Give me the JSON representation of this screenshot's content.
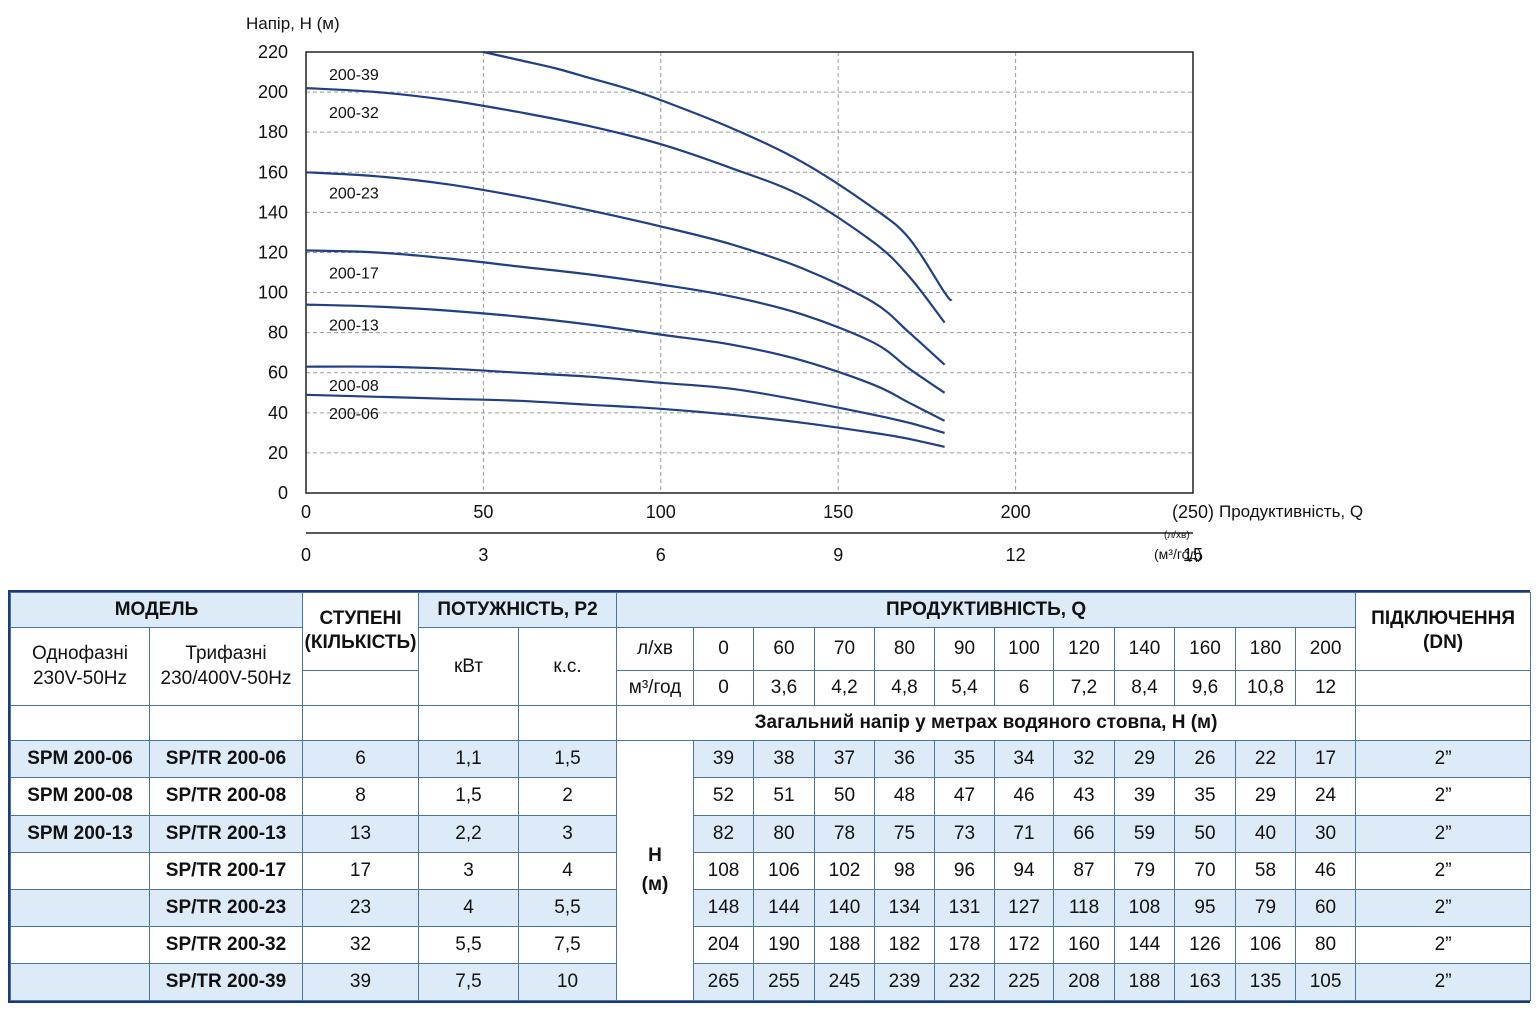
{
  "chart_data": {
    "type": "line",
    "ylabel": "Напір, Н (м)",
    "xlabel": "Продуктивність, Q",
    "x_unit_primary": "(л/хв)",
    "x_unit_secondary": "(м³/год)",
    "xlim": [
      0,
      250
    ],
    "ylim": [
      0,
      220
    ],
    "grid": true,
    "y_ticks": [
      "0",
      "20",
      "40",
      "60",
      "80",
      "100",
      "120",
      "140",
      "160",
      "180",
      "200",
      "220"
    ],
    "x_ticks_primary": [
      "0",
      "50",
      "100",
      "150",
      "200",
      "(250)"
    ],
    "x_ticks_secondary": [
      "0",
      "3",
      "6",
      "9",
      "12",
      "15"
    ],
    "series": [
      {
        "name": "200-39",
        "x": [
          50,
          60,
          70,
          80,
          90,
          100,
          120,
          140,
          160,
          170,
          180,
          182
        ],
        "y": [
          220,
          216,
          212,
          207,
          202,
          196,
          182,
          165,
          142,
          127,
          100,
          96
        ]
      },
      {
        "name": "200-32",
        "x": [
          0,
          20,
          40,
          60,
          80,
          100,
          120,
          140,
          160,
          170,
          180
        ],
        "y": [
          202,
          200,
          196,
          190,
          183,
          174,
          162,
          148,
          125,
          108,
          85
        ]
      },
      {
        "name": "200-23",
        "x": [
          0,
          20,
          40,
          60,
          80,
          100,
          120,
          140,
          160,
          170,
          180
        ],
        "y": [
          160,
          158,
          154,
          148,
          141,
          133,
          124,
          112,
          95,
          80,
          64
        ]
      },
      {
        "name": "200-17",
        "x": [
          0,
          20,
          40,
          60,
          80,
          100,
          120,
          140,
          160,
          170,
          180
        ],
        "y": [
          121,
          120,
          117,
          113,
          109,
          104,
          98,
          89,
          75,
          62,
          50
        ]
      },
      {
        "name": "200-13",
        "x": [
          0,
          20,
          40,
          60,
          80,
          100,
          120,
          140,
          160,
          170,
          180
        ],
        "y": [
          94,
          93,
          91,
          88,
          84,
          79,
          74,
          66,
          54,
          45,
          36
        ]
      },
      {
        "name": "200-08",
        "x": [
          0,
          20,
          40,
          60,
          80,
          100,
          120,
          140,
          160,
          170,
          180
        ],
        "y": [
          63,
          63,
          62,
          60,
          58,
          55,
          52,
          46,
          39,
          35,
          30
        ]
      },
      {
        "name": "200-06",
        "x": [
          0,
          20,
          40,
          60,
          80,
          100,
          120,
          140,
          160,
          170,
          180
        ],
        "y": [
          49,
          48,
          47,
          46,
          44,
          42,
          39,
          35,
          30,
          27,
          23
        ]
      }
    ]
  },
  "table": {
    "h_model": "МОДЕЛЬ",
    "h_single": "Однофазні\n230V-50Hz",
    "h_three": "Трифазні\n230/400V-50Hz",
    "h_stages": "СТУПЕНІ\n(КІЛЬКІСТЬ)",
    "h_power": "ПОТУЖНІСТЬ, Р2",
    "h_kw": "кВт",
    "h_hp": "к.с.",
    "h_flow": "ПРОДУКТИВНІСТЬ, Q",
    "h_lpm": "л/хв",
    "h_m3h": "м³/год",
    "h_conn": "ПІДКЛЮЧЕННЯ\n(DN)",
    "flow_lpm": [
      "0",
      "60",
      "70",
      "80",
      "90",
      "100",
      "120",
      "140",
      "160",
      "180",
      "200"
    ],
    "flow_m3h": [
      "0",
      "3,6",
      "4,2",
      "4,8",
      "5,4",
      "6",
      "7,2",
      "8,4",
      "9,6",
      "10,8",
      "12"
    ],
    "head_note": "Загальний напір у метрах водяного стовпа, Н (м)",
    "h_symbol": "Н\n(м)",
    "rows": [
      {
        "single": "SPM 200-06",
        "three": "SP/TR 200-06",
        "stages": "6",
        "kw": "1,1",
        "hp": "1,5",
        "heads": [
          "39",
          "38",
          "37",
          "36",
          "35",
          "34",
          "32",
          "29",
          "26",
          "22",
          "17"
        ],
        "dn": "2”"
      },
      {
        "single": "SPM 200-08",
        "three": "SP/TR 200-08",
        "stages": "8",
        "kw": "1,5",
        "hp": "2",
        "heads": [
          "52",
          "51",
          "50",
          "48",
          "47",
          "46",
          "43",
          "39",
          "35",
          "29",
          "24"
        ],
        "dn": "2”"
      },
      {
        "single": "SPM 200-13",
        "three": "SP/TR 200-13",
        "stages": "13",
        "kw": "2,2",
        "hp": "3",
        "heads": [
          "82",
          "80",
          "78",
          "75",
          "73",
          "71",
          "66",
          "59",
          "50",
          "40",
          "30"
        ],
        "dn": "2”"
      },
      {
        "single": "",
        "three": "SP/TR 200-17",
        "stages": "17",
        "kw": "3",
        "hp": "4",
        "heads": [
          "108",
          "106",
          "102",
          "98",
          "96",
          "94",
          "87",
          "79",
          "70",
          "58",
          "46"
        ],
        "dn": "2”"
      },
      {
        "single": "",
        "three": "SP/TR 200-23",
        "stages": "23",
        "kw": "4",
        "hp": "5,5",
        "heads": [
          "148",
          "144",
          "140",
          "134",
          "131",
          "127",
          "118",
          "108",
          "95",
          "79",
          "60"
        ],
        "dn": "2”"
      },
      {
        "single": "",
        "three": "SP/TR 200-32",
        "stages": "32",
        "kw": "5,5",
        "hp": "7,5",
        "heads": [
          "204",
          "190",
          "188",
          "182",
          "178",
          "172",
          "160",
          "144",
          "126",
          "106",
          "80"
        ],
        "dn": "2”"
      },
      {
        "single": "",
        "three": "SP/TR 200-39",
        "stages": "39",
        "kw": "7,5",
        "hp": "10",
        "heads": [
          "265",
          "255",
          "245",
          "239",
          "232",
          "225",
          "208",
          "188",
          "163",
          "135",
          "105"
        ],
        "dn": "2”"
      }
    ]
  },
  "colors": {
    "curve": "#1f3f86",
    "grid": "#9a9a9a",
    "table_border": "#1a3a78",
    "row_shade": "#dcebf7",
    "header_text": "#1a2f6b"
  }
}
